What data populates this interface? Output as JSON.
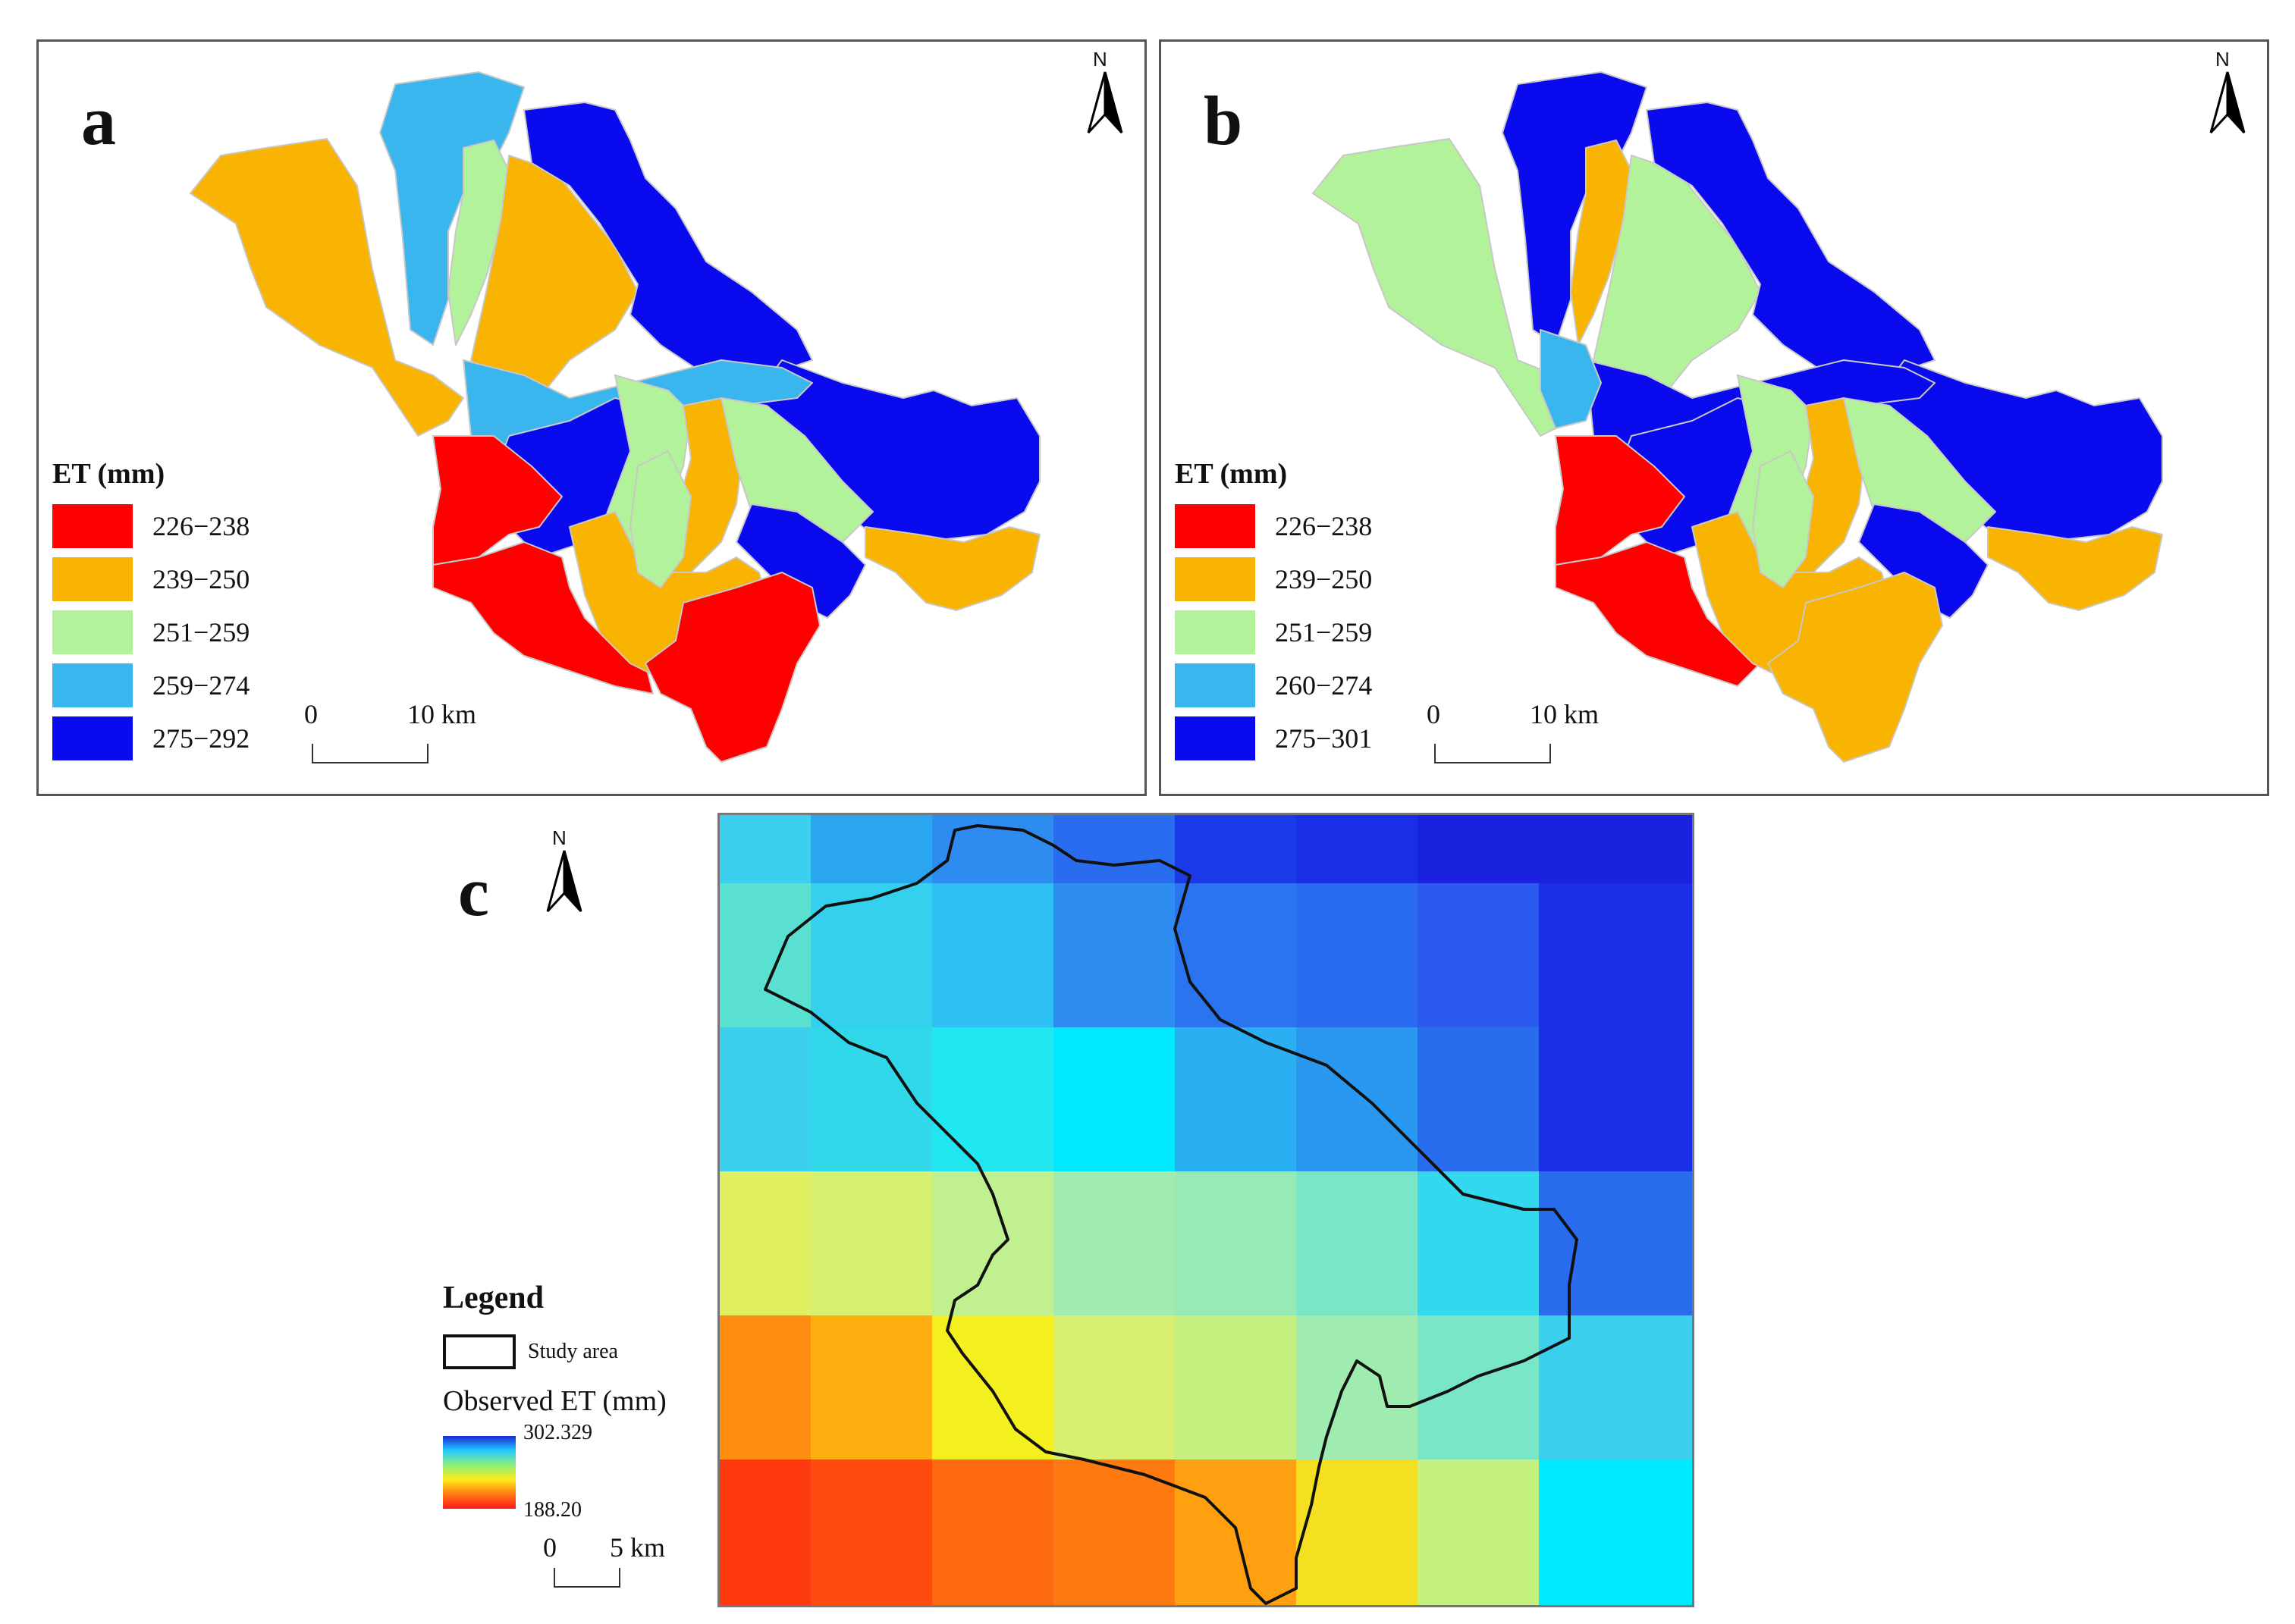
{
  "colors": {
    "red": "#ff0000",
    "orange": "#f9b301",
    "light_green": "#b2f29a",
    "light_blue": "#3ab6ee",
    "dark_blue": "#0a0aee"
  },
  "panel_a": {
    "letter": "a",
    "north": "N",
    "legend_title": "ET (mm)",
    "legend": [
      {
        "label": "226−238",
        "color": "#ff0000"
      },
      {
        "label": "239−250",
        "color": "#f9b301"
      },
      {
        "label": "251−259",
        "color": "#b2f29a"
      },
      {
        "label": "259−274",
        "color": "#3ab6ee"
      },
      {
        "label": "275−292",
        "color": "#0a0aee"
      }
    ],
    "scale_zero": "0",
    "scale_end": "10 km"
  },
  "panel_b": {
    "letter": "b",
    "north": "N",
    "legend_title": "ET (mm)",
    "legend": [
      {
        "label": "226−238",
        "color": "#ff0000"
      },
      {
        "label": "239−250",
        "color": "#f9b301"
      },
      {
        "label": "251−259",
        "color": "#b2f29a"
      },
      {
        "label": "260−274",
        "color": "#3ab6ee"
      },
      {
        "label": "275−301",
        "color": "#0a0aee"
      }
    ],
    "scale_zero": "0",
    "scale_end": "10 km"
  },
  "panel_c": {
    "letter": "c",
    "north": "N",
    "legend_heading": "Legend",
    "study_area": "Study area",
    "observed_title": "Observed ET (mm)",
    "max_value": "302.329",
    "min_value": "188.20",
    "scale_zero": "0",
    "scale_end": "5 km"
  }
}
